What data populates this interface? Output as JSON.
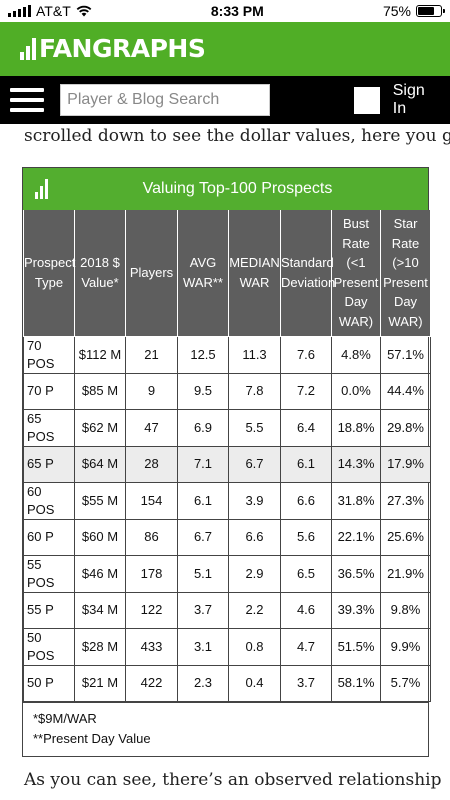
{
  "status_bar": {
    "carrier": "AT&T",
    "time": "8:33 PM",
    "battery_percent": "75%",
    "battery_level": 0.75
  },
  "header": {
    "logo_text": "FANGRAPHS",
    "search_placeholder": "Player & Blog Search",
    "signin_label": "Sign In"
  },
  "article": {
    "text_above": "scrolled down to see the dollar values, here you go:",
    "text_below": "As you can see, there’s an observed relationship"
  },
  "figure": {
    "title": "Valuing Top-100 Prospects",
    "columns": [
      "Prospect Type",
      "2018 $ Value*",
      "Players",
      "AVG WAR**",
      "MEDIAN WAR",
      "Standard Deviation",
      "Bust Rate (<1 Present Day WAR)",
      "Star Rate (>10 Present Day WAR)"
    ],
    "rows": [
      [
        "70 POS",
        "$112 M",
        "21",
        "12.5",
        "11.3",
        "7.6",
        "4.8%",
        "57.1%"
      ],
      [
        "70 P",
        "$85 M",
        "9",
        "9.5",
        "7.8",
        "7.2",
        "0.0%",
        "44.4%"
      ],
      [
        "65 POS",
        "$62 M",
        "47",
        "6.9",
        "5.5",
        "6.4",
        "18.8%",
        "29.8%"
      ],
      [
        "65 P",
        "$64 M",
        "28",
        "7.1",
        "6.7",
        "6.1",
        "14.3%",
        "17.9%"
      ],
      [
        "60 POS",
        "$55 M",
        "154",
        "6.1",
        "3.9",
        "6.6",
        "31.8%",
        "27.3%"
      ],
      [
        "60 P",
        "$60 M",
        "86",
        "6.7",
        "6.6",
        "5.6",
        "22.1%",
        "25.6%"
      ],
      [
        "55 POS",
        "$46 M",
        "178",
        "5.1",
        "2.9",
        "6.5",
        "36.5%",
        "21.9%"
      ],
      [
        "55 P",
        "$34 M",
        "122",
        "3.7",
        "2.2",
        "4.6",
        "39.3%",
        "9.8%"
      ],
      [
        "50 POS",
        "$28 M",
        "433",
        "3.1",
        "0.8",
        "4.7",
        "51.5%",
        "9.9%"
      ],
      [
        "50 P",
        "$21 M",
        "422",
        "2.3",
        "0.4",
        "3.7",
        "58.1%",
        "5.7%"
      ]
    ],
    "highlighted_row": 3,
    "footnotes": [
      "*$9M/WAR",
      "**Present Day Value"
    ]
  },
  "colors": {
    "brand_green": "#50ae26",
    "nav_black": "#000000",
    "table_header_gray": "#5e5e5e"
  },
  "icons": {
    "menu": "hamburger-menu-icon",
    "wifi": "wifi-icon",
    "battery": "battery-icon",
    "signal": "cellular-signal-icon",
    "logo": "fangraphs-logo-icon"
  }
}
